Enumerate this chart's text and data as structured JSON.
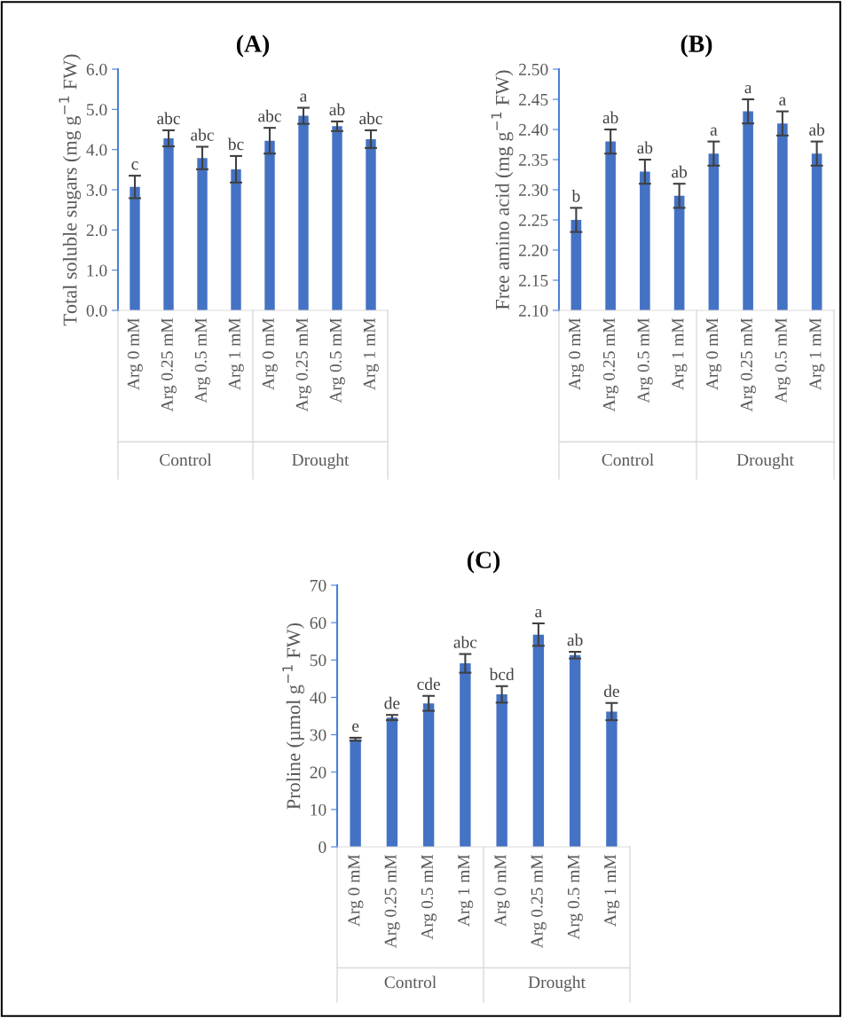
{
  "chart_data": [
    {
      "type": "bar",
      "title": "(A)",
      "ylabel": "Total soluble sugars (mg g$^{−1}$ FW)",
      "categories": [
        "Arg 0 mM",
        "Arg 0.25 mM",
        "Arg 0.5 mM",
        "Arg 1 mM",
        "Arg 0 mM",
        "Arg 0.25 mM",
        "Arg 0.5 mM",
        "Arg 1 mM"
      ],
      "values": [
        3.07,
        4.28,
        3.79,
        3.51,
        4.22,
        4.84,
        4.58,
        4.26
      ],
      "errors": [
        0.28,
        0.2,
        0.28,
        0.33,
        0.32,
        0.2,
        0.12,
        0.22
      ],
      "value_labels": [
        "c",
        "abc",
        "abc",
        "bc",
        "abc",
        "a",
        "ab",
        "abc"
      ],
      "color": "#4472c4",
      "ylim": [
        0,
        6
      ],
      "yticks": [
        {
          "value": 0,
          "label": "0.0"
        },
        {
          "value": 1,
          "label": "1.0"
        },
        {
          "value": 2,
          "label": "2.0"
        },
        {
          "value": 3,
          "label": "3.0"
        },
        {
          "value": 4,
          "label": "4.0"
        },
        {
          "value": 5,
          "label": "5.0"
        },
        {
          "value": 6,
          "label": "6.0"
        }
      ],
      "annotations": [
        "Control",
        "Drought"
      ],
      "grid": false,
      "legend": false
    },
    {
      "type": "bar",
      "title": "(B)",
      "ylabel": "Free amino acid (mg g$^{−1}$ FW)",
      "categories": [
        "Arg 0 mM",
        "Arg 0.25 mM",
        "Arg 0.5 mM",
        "Arg 1 mM",
        "Arg 0 mM",
        "Arg 0.25 mM",
        "Arg 0.5 mM",
        "Arg 1 mM"
      ],
      "values": [
        2.25,
        2.38,
        2.33,
        2.29,
        2.36,
        2.43,
        2.41,
        2.36
      ],
      "errors": [
        0.02,
        0.02,
        0.02,
        0.02,
        0.02,
        0.02,
        0.02,
        0.02
      ],
      "value_labels": [
        "b",
        "ab",
        "ab",
        "ab",
        "a",
        "a",
        "a",
        "ab"
      ],
      "color": "#4472c4",
      "ylim": [
        2.1,
        2.5
      ],
      "yticks": [
        {
          "value": 2.1,
          "label": "2.10"
        },
        {
          "value": 2.15,
          "label": "2.15"
        },
        {
          "value": 2.2,
          "label": "2.20"
        },
        {
          "value": 2.25,
          "label": "2.25"
        },
        {
          "value": 2.3,
          "label": "2.30"
        },
        {
          "value": 2.35,
          "label": "2.35"
        },
        {
          "value": 2.4,
          "label": "2.40"
        },
        {
          "value": 2.45,
          "label": "2.45"
        },
        {
          "value": 2.5,
          "label": "2.50"
        }
      ],
      "annotations": [
        "Control",
        "Drought"
      ],
      "grid": false,
      "legend": false
    },
    {
      "type": "bar",
      "title": "(C)",
      "ylabel": "Proline (µmol g$^{−1}$ FW)",
      "categories": [
        "Arg 0 mM",
        "Arg 0.25 mM",
        "Arg 0.5 mM",
        "Arg 1 mM",
        "Arg 0 mM",
        "Arg 0.25 mM",
        "Arg 0.5 mM",
        "Arg 1 mM"
      ],
      "values": [
        28.8,
        34.6,
        38.4,
        49.1,
        40.8,
        56.8,
        51.3,
        36.2
      ],
      "errors": [
        0.4,
        0.7,
        2.0,
        2.5,
        2.2,
        3.0,
        0.9,
        2.3
      ],
      "value_labels": [
        "e",
        "de",
        "cde",
        "abc",
        "bcd",
        "a",
        "ab",
        "de"
      ],
      "color": "#4472c4",
      "ylim": [
        0,
        70
      ],
      "yticks": [
        0,
        10,
        20,
        30,
        40,
        50,
        60,
        70
      ],
      "annotations": [
        "Control",
        "Drought"
      ],
      "grid": false,
      "legend": false
    }
  ]
}
